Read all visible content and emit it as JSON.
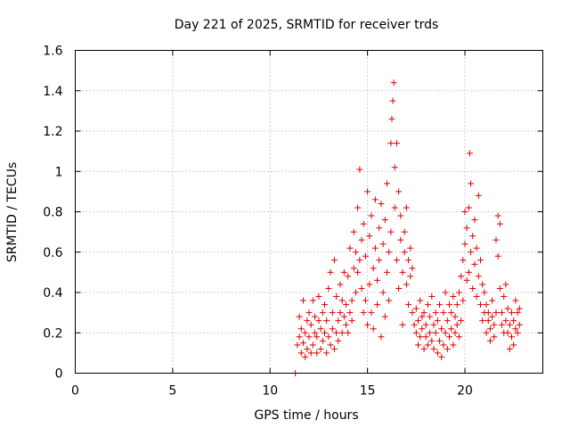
{
  "chart_data": {
    "type": "scatter",
    "title": "Day 221 of 2025, SRMTID for receiver trds",
    "xlabel": "GPS time / hours",
    "ylabel": "SRMTID / TECUs",
    "xlim": [
      0,
      24
    ],
    "ylim": [
      0,
      1.6
    ],
    "xticks": [
      0,
      5,
      10,
      15,
      20
    ],
    "xtick_labels": [
      "0",
      "5",
      "10",
      "15",
      "20"
    ],
    "yticks": [
      0,
      0.2,
      0.4,
      0.6,
      0.8,
      1,
      1.2,
      1.4,
      1.6
    ],
    "ytick_labels": [
      "0",
      "0.2",
      "0.4",
      "0.6",
      "0.8",
      "1",
      "1.2",
      "1.4",
      "1.6"
    ],
    "grid": true,
    "marker": "+",
    "colors": {
      "points": "#e00000",
      "grid": "#a0a0a0",
      "axes": "#000000"
    },
    "series": [
      {
        "name": "SRMTID",
        "points": [
          [
            11.3,
            0.0
          ],
          [
            11.4,
            0.14
          ],
          [
            11.5,
            0.18
          ],
          [
            11.5,
            0.28
          ],
          [
            11.6,
            0.1
          ],
          [
            11.6,
            0.22
          ],
          [
            11.7,
            0.15
          ],
          [
            11.7,
            0.36
          ],
          [
            11.8,
            0.08
          ],
          [
            11.8,
            0.2
          ],
          [
            11.9,
            0.12
          ],
          [
            11.9,
            0.26
          ],
          [
            12.0,
            0.18
          ],
          [
            12.0,
            0.3
          ],
          [
            12.1,
            0.1
          ],
          [
            12.1,
            0.24
          ],
          [
            12.2,
            0.14
          ],
          [
            12.2,
            0.36
          ],
          [
            12.3,
            0.2
          ],
          [
            12.3,
            0.28
          ],
          [
            12.4,
            0.1
          ],
          [
            12.4,
            0.18
          ],
          [
            12.5,
            0.26
          ],
          [
            12.5,
            0.38
          ],
          [
            12.6,
            0.12
          ],
          [
            12.6,
            0.22
          ],
          [
            12.7,
            0.3
          ],
          [
            12.7,
            0.16
          ],
          [
            12.8,
            0.2
          ],
          [
            12.8,
            0.34
          ],
          [
            12.9,
            0.1
          ],
          [
            12.9,
            0.26
          ],
          [
            13.0,
            0.18
          ],
          [
            13.0,
            0.42
          ],
          [
            13.1,
            0.14
          ],
          [
            13.1,
            0.5
          ],
          [
            13.2,
            0.22
          ],
          [
            13.2,
            0.3
          ],
          [
            13.3,
            0.12
          ],
          [
            13.3,
            0.56
          ],
          [
            13.4,
            0.2
          ],
          [
            13.4,
            0.38
          ],
          [
            13.5,
            0.26
          ],
          [
            13.5,
            0.16
          ],
          [
            13.6,
            0.3
          ],
          [
            13.6,
            0.44
          ],
          [
            13.7,
            0.2
          ],
          [
            13.7,
            0.36
          ],
          [
            13.8,
            0.28
          ],
          [
            13.8,
            0.5
          ],
          [
            13.9,
            0.24
          ],
          [
            13.9,
            0.34
          ],
          [
            14.0,
            0.2
          ],
          [
            14.0,
            0.48
          ],
          [
            14.1,
            0.3
          ],
          [
            14.1,
            0.62
          ],
          [
            14.2,
            0.36
          ],
          [
            14.2,
            0.26
          ],
          [
            14.3,
            0.52
          ],
          [
            14.3,
            0.7
          ],
          [
            14.4,
            0.4
          ],
          [
            14.4,
            0.6
          ],
          [
            14.5,
            0.5
          ],
          [
            14.5,
            0.82
          ],
          [
            14.6,
            0.56
          ],
          [
            14.6,
            1.01
          ],
          [
            14.7,
            0.42
          ],
          [
            14.7,
            0.66
          ],
          [
            14.8,
            0.3
          ],
          [
            14.8,
            0.74
          ],
          [
            14.9,
            0.36
          ],
          [
            14.9,
            0.58
          ],
          [
            15.0,
            0.24
          ],
          [
            15.0,
            0.9
          ],
          [
            15.1,
            0.44
          ],
          [
            15.1,
            0.68
          ],
          [
            15.2,
            0.3
          ],
          [
            15.2,
            0.78
          ],
          [
            15.3,
            0.52
          ],
          [
            15.3,
            0.22
          ],
          [
            15.4,
            0.62
          ],
          [
            15.4,
            0.86
          ],
          [
            15.5,
            0.46
          ],
          [
            15.5,
            0.34
          ],
          [
            15.6,
            0.72
          ],
          [
            15.6,
            0.56
          ],
          [
            15.7,
            0.18
          ],
          [
            15.7,
            0.84
          ],
          [
            15.8,
            0.4
          ],
          [
            15.8,
            0.64
          ],
          [
            15.9,
            0.28
          ],
          [
            15.9,
            0.76
          ],
          [
            16.0,
            0.5
          ],
          [
            16.0,
            0.94
          ],
          [
            16.1,
            0.36
          ],
          [
            16.1,
            0.6
          ],
          [
            16.2,
            0.7
          ],
          [
            16.2,
            1.14
          ],
          [
            16.25,
            1.26
          ],
          [
            16.3,
            1.35
          ],
          [
            16.35,
            1.44
          ],
          [
            16.4,
            0.82
          ],
          [
            16.4,
            1.02
          ],
          [
            16.5,
            0.56
          ],
          [
            16.5,
            1.14
          ],
          [
            16.6,
            0.42
          ],
          [
            16.6,
            0.9
          ],
          [
            16.7,
            0.66
          ],
          [
            16.7,
            0.78
          ],
          [
            16.8,
            0.5
          ],
          [
            16.8,
            0.24
          ],
          [
            16.9,
            0.7
          ],
          [
            16.9,
            0.6
          ],
          [
            17.0,
            0.44
          ],
          [
            17.0,
            0.82
          ],
          [
            17.1,
            0.34
          ],
          [
            17.1,
            0.56
          ],
          [
            17.2,
            0.62
          ],
          [
            17.2,
            0.48
          ],
          [
            17.3,
            0.3
          ],
          [
            17.3,
            0.52
          ],
          [
            17.4,
            0.24
          ],
          [
            17.5,
            0.2
          ],
          [
            17.5,
            0.32
          ],
          [
            17.6,
            0.14
          ],
          [
            17.6,
            0.26
          ],
          [
            17.7,
            0.18
          ],
          [
            17.7,
            0.36
          ],
          [
            17.8,
            0.22
          ],
          [
            17.8,
            0.28
          ],
          [
            17.9,
            0.12
          ],
          [
            17.9,
            0.3
          ],
          [
            18.0,
            0.18
          ],
          [
            18.0,
            0.24
          ],
          [
            18.1,
            0.14
          ],
          [
            18.1,
            0.34
          ],
          [
            18.2,
            0.2
          ],
          [
            18.2,
            0.28
          ],
          [
            18.3,
            0.16
          ],
          [
            18.3,
            0.38
          ],
          [
            18.4,
            0.12
          ],
          [
            18.4,
            0.24
          ],
          [
            18.5,
            0.2
          ],
          [
            18.5,
            0.3
          ],
          [
            18.6,
            0.1
          ],
          [
            18.6,
            0.26
          ],
          [
            18.7,
            0.16
          ],
          [
            18.7,
            0.34
          ],
          [
            18.8,
            0.08
          ],
          [
            18.8,
            0.22
          ],
          [
            18.9,
            0.14
          ],
          [
            18.9,
            0.3
          ],
          [
            19.0,
            0.2
          ],
          [
            19.0,
            0.4
          ],
          [
            19.1,
            0.12
          ],
          [
            19.1,
            0.26
          ],
          [
            19.2,
            0.18
          ],
          [
            19.2,
            0.34
          ],
          [
            19.3,
            0.22
          ],
          [
            19.3,
            0.3
          ],
          [
            19.4,
            0.14
          ],
          [
            19.4,
            0.38
          ],
          [
            19.5,
            0.2
          ],
          [
            19.5,
            0.28
          ],
          [
            19.6,
            0.24
          ],
          [
            19.6,
            0.34
          ],
          [
            19.7,
            0.18
          ],
          [
            19.7,
            0.4
          ],
          [
            19.8,
            0.26
          ],
          [
            19.8,
            0.48
          ],
          [
            19.9,
            0.36
          ],
          [
            19.9,
            0.56
          ],
          [
            20.0,
            0.64
          ],
          [
            20.0,
            0.8
          ],
          [
            20.1,
            0.46
          ],
          [
            20.1,
            0.72
          ],
          [
            20.2,
            0.5
          ],
          [
            20.2,
            0.82
          ],
          [
            20.25,
            1.09
          ],
          [
            20.3,
            0.6
          ],
          [
            20.3,
            0.94
          ],
          [
            20.4,
            0.42
          ],
          [
            20.4,
            0.68
          ],
          [
            20.5,
            0.54
          ],
          [
            20.5,
            0.76
          ],
          [
            20.6,
            0.38
          ],
          [
            20.6,
            0.62
          ],
          [
            20.7,
            0.48
          ],
          [
            20.7,
            0.88
          ],
          [
            20.8,
            0.34
          ],
          [
            20.8,
            0.56
          ],
          [
            20.9,
            0.26
          ],
          [
            20.9,
            0.44
          ],
          [
            21.0,
            0.3
          ],
          [
            21.0,
            0.4
          ],
          [
            21.1,
            0.2
          ],
          [
            21.1,
            0.34
          ],
          [
            21.2,
            0.26
          ],
          [
            21.2,
            0.3
          ],
          [
            21.3,
            0.16
          ],
          [
            21.3,
            0.22
          ],
          [
            21.4,
            0.28
          ],
          [
            21.4,
            0.36
          ],
          [
            21.5,
            0.18
          ],
          [
            21.5,
            0.24
          ],
          [
            21.6,
            0.3
          ],
          [
            21.6,
            0.66
          ],
          [
            21.7,
            0.58
          ],
          [
            21.7,
            0.78
          ],
          [
            21.8,
            0.74
          ],
          [
            21.8,
            0.42
          ],
          [
            21.9,
            0.3
          ],
          [
            21.9,
            0.24
          ],
          [
            22.0,
            0.2
          ],
          [
            22.0,
            0.38
          ],
          [
            22.1,
            0.44
          ],
          [
            22.1,
            0.26
          ],
          [
            22.2,
            0.2
          ],
          [
            22.2,
            0.32
          ],
          [
            22.3,
            0.12
          ],
          [
            22.3,
            0.24
          ],
          [
            22.4,
            0.18
          ],
          [
            22.4,
            0.3
          ],
          [
            22.5,
            0.14
          ],
          [
            22.5,
            0.26
          ],
          [
            22.6,
            0.22
          ],
          [
            22.6,
            0.36
          ],
          [
            22.7,
            0.2
          ],
          [
            22.7,
            0.3
          ],
          [
            22.8,
            0.24
          ],
          [
            22.8,
            0.32
          ]
        ]
      }
    ]
  }
}
